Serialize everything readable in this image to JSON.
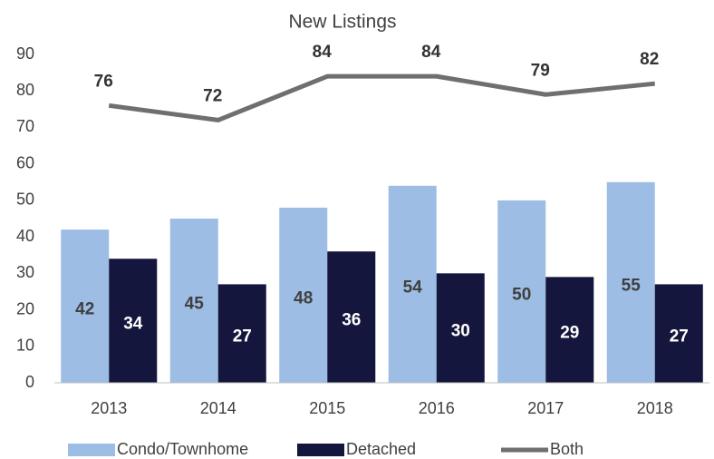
{
  "chart_data": {
    "type": "bar",
    "title": "New Listings",
    "categories": [
      "2013",
      "2014",
      "2015",
      "2016",
      "2017",
      "2018"
    ],
    "series": [
      {
        "name": "Condo/Townhome",
        "type": "bar",
        "color": "#9dbde4",
        "values": [
          42,
          45,
          48,
          54,
          50,
          55
        ]
      },
      {
        "name": "Detached",
        "type": "bar",
        "color": "#15163d",
        "values": [
          34,
          27,
          36,
          30,
          29,
          27
        ]
      },
      {
        "name": "Both",
        "type": "line",
        "color": "#6f6f6f",
        "values": [
          76,
          72,
          84,
          84,
          79,
          82
        ]
      }
    ],
    "ylim": [
      0,
      90
    ],
    "yticks": [
      0,
      10,
      20,
      30,
      40,
      50,
      60,
      70,
      80,
      90
    ],
    "grid": false,
    "legend": "bottom"
  }
}
